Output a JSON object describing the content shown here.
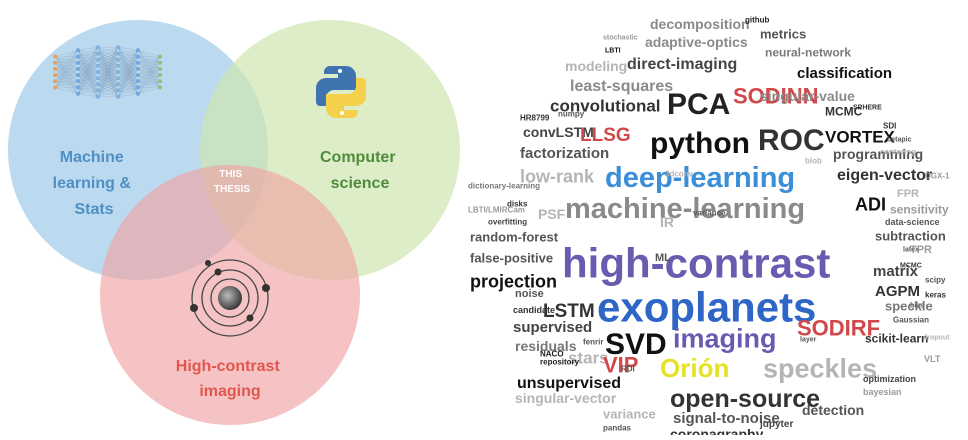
{
  "venn": {
    "ml_label": [
      "Machine",
      "learning &",
      "Stats"
    ],
    "cs_label": [
      "Computer",
      "science"
    ],
    "hci_label": [
      "High-contrast",
      "imaging"
    ],
    "center_label": [
      "THIS",
      "THESIS"
    ],
    "colors": {
      "ml": "#9ecae9",
      "cs": "#cfe5b1",
      "hci": "#f0a3a3",
      "ml_text": "#4f8fc4",
      "cs_text": "#4f8b3a",
      "hci_text": "#e0574f"
    }
  },
  "wordcloud": {
    "words": [
      {
        "text": "decomposition",
        "color": "#8a8a8a"
      },
      {
        "text": "github",
        "color": "#222222"
      },
      {
        "text": "stochastic",
        "color": "#9a9a9a"
      },
      {
        "text": "adaptive-optics",
        "color": "#8a8a8a"
      },
      {
        "text": "metrics",
        "color": "#555555"
      },
      {
        "text": "LBTI",
        "color": "#111111"
      },
      {
        "text": "modeling",
        "color": "#b5b5b5"
      },
      {
        "text": "direct-imaging",
        "color": "#444444"
      },
      {
        "text": "neural-network",
        "color": "#7a7a7a"
      },
      {
        "text": "least-squares",
        "color": "#8a8a8a"
      },
      {
        "text": "classification",
        "color": "#111111"
      },
      {
        "text": "PCA",
        "color": "#222222"
      },
      {
        "text": "SODINN",
        "color": "#d0484a"
      },
      {
        "text": "convolutional",
        "color": "#333333"
      },
      {
        "text": "singular-value",
        "color": "#8a8a8a"
      },
      {
        "text": "HR8799",
        "color": "#333333"
      },
      {
        "text": "numpy",
        "color": "#555555"
      },
      {
        "text": "python",
        "color": "#111111"
      },
      {
        "text": "ROC",
        "color": "#333333"
      },
      {
        "text": "MCMC",
        "color": "#333333"
      },
      {
        "text": "SPHERE",
        "color": "#333333"
      },
      {
        "text": "convLSTM",
        "color": "#444444"
      },
      {
        "text": "LLSG",
        "color": "#d0484a"
      },
      {
        "text": "VORTEX",
        "color": "#111111"
      },
      {
        "text": "SDI",
        "color": "#333333"
      },
      {
        "text": "betapic",
        "color": "#555555"
      },
      {
        "text": "factorization",
        "color": "#555555"
      },
      {
        "text": "programming",
        "color": "#555555"
      },
      {
        "text": "deep-learning",
        "color": "#3a8fd8"
      },
      {
        "text": "blob",
        "color": "#b5b5b5"
      },
      {
        "text": "low-rank",
        "color": "#b5b5b5"
      },
      {
        "text": "eigen-vector",
        "color": "#333333"
      },
      {
        "text": "3dconv",
        "color": "#b5b5b5"
      },
      {
        "text": "dictionary-learning",
        "color": "#777777"
      },
      {
        "text": "machine-learning",
        "color": "#8a8a8a"
      },
      {
        "text": "ADI",
        "color": "#111111"
      },
      {
        "text": "FPR",
        "color": "#b5b5b5"
      },
      {
        "text": "disks",
        "color": "#333333"
      },
      {
        "text": "LBTI/LMIRCam",
        "color": "#9a9a9a"
      },
      {
        "text": "PSF",
        "color": "#b5b5b5"
      },
      {
        "text": "sensitivity",
        "color": "#9a9a9a"
      },
      {
        "text": "overfitting",
        "color": "#444444"
      },
      {
        "text": "random-forest",
        "color": "#555555"
      },
      {
        "text": "IR",
        "color": "#b5b5b5"
      },
      {
        "text": "variance",
        "color": "#555555"
      },
      {
        "text": "high-contrast",
        "color": "#6a5bb0"
      },
      {
        "text": "data-science",
        "color": "#555555"
      },
      {
        "text": "false-positive",
        "color": "#555555"
      },
      {
        "text": "ML",
        "color": "#555555"
      },
      {
        "text": "subtraction",
        "color": "#555555"
      },
      {
        "text": "latex",
        "color": "#555555"
      },
      {
        "text": "TPR",
        "color": "#9a9a9a"
      },
      {
        "text": "projection",
        "color": "#111111"
      },
      {
        "text": "exoplanets",
        "color": "#2e66c8"
      },
      {
        "text": "matrix",
        "color": "#444444"
      },
      {
        "text": "MCMC",
        "color": "#333333"
      },
      {
        "text": "noise",
        "color": "#555555"
      },
      {
        "text": "scipy",
        "color": "#555555"
      },
      {
        "text": "AGPM",
        "color": "#333333"
      },
      {
        "text": "keras",
        "color": "#333333"
      },
      {
        "text": "candidate",
        "color": "#333333"
      },
      {
        "text": "LSTM",
        "color": "#333333"
      },
      {
        "text": "bias",
        "color": "#555555"
      },
      {
        "text": "speckle",
        "color": "#777777"
      },
      {
        "text": "supervised",
        "color": "#444444"
      },
      {
        "text": "SVD",
        "color": "#111111"
      },
      {
        "text": "imaging",
        "color": "#6a5bb0"
      },
      {
        "text": "SODIRF",
        "color": "#d0484a"
      },
      {
        "text": "Gaussian",
        "color": "#555555"
      },
      {
        "text": "residuals",
        "color": "#777777"
      },
      {
        "text": "fenrir",
        "color": "#555555"
      },
      {
        "text": "layer",
        "color": "#555555"
      },
      {
        "text": "scikit-learn",
        "color": "#333333"
      },
      {
        "text": "dropout",
        "color": "#b5b5b5"
      },
      {
        "text": "stars",
        "color": "#b5b5b5"
      },
      {
        "text": "VIP",
        "color": "#d0484a"
      },
      {
        "text": "Orión",
        "color": "#e6e225"
      },
      {
        "text": "speckles",
        "color": "#b5b5b5"
      },
      {
        "text": "VLT",
        "color": "#9a9a9a"
      },
      {
        "text": "NACO",
        "color": "#222222"
      },
      {
        "text": "repository",
        "color": "#222222"
      },
      {
        "text": "RDI",
        "color": "#555555"
      },
      {
        "text": "unsupervised",
        "color": "#111111"
      },
      {
        "text": "optimization",
        "color": "#444444"
      },
      {
        "text": "bayesian",
        "color": "#9a9a9a"
      },
      {
        "text": "singular-vector",
        "color": "#b5b5b5"
      },
      {
        "text": "open-source",
        "color": "#333333"
      },
      {
        "text": "variance",
        "color": "#b5b5b5"
      },
      {
        "text": "signal-to-noise",
        "color": "#555555"
      },
      {
        "text": "detection",
        "color": "#555555"
      },
      {
        "text": "pandas",
        "color": "#555555"
      },
      {
        "text": "coronagraphy",
        "color": "#333333"
      },
      {
        "text": "jupyter",
        "color": "#444444"
      },
      {
        "text": "centering",
        "color": "#b5b5b5"
      },
      {
        "text": "DGX-1",
        "color": "#9a9a9a"
      }
    ]
  }
}
